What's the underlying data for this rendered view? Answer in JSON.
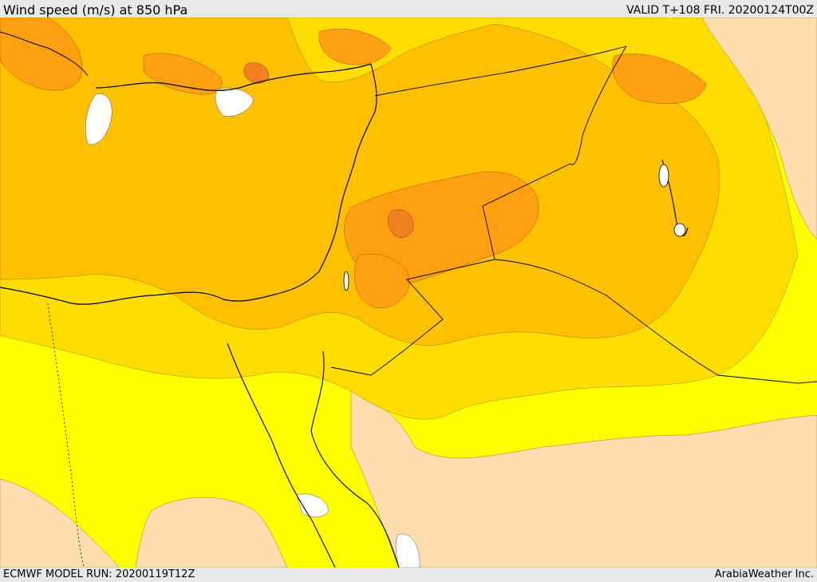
{
  "header": {
    "title": "Wind speed (m/s) at 850 hPa",
    "valid": "VALID T+108 FRI. 20200124T00Z"
  },
  "footer": {
    "model_run": "ECMWF MODEL RUN: 20200119T12Z",
    "credit": "ArabiaWeather Inc."
  },
  "map": {
    "variable": "wind speed",
    "units": "m/s",
    "level": "850 hPa",
    "colors": {
      "calm": "#ffdead",
      "light": "#ffff00",
      "moderate": "#ffdd00",
      "fresh": "#ffc000",
      "strong": "#ffa010",
      "very_strong": "#f08020",
      "gap": "#ffffff",
      "coast": "#000000"
    }
  }
}
